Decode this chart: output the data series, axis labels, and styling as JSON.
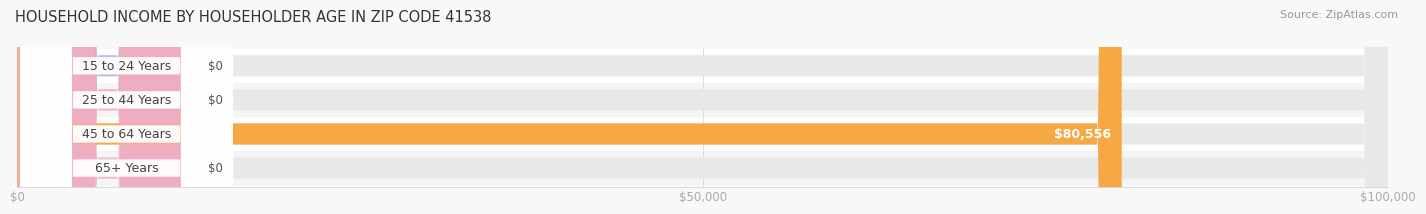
{
  "title": "HOUSEHOLD INCOME BY HOUSEHOLDER AGE IN ZIP CODE 41538",
  "source": "Source: ZipAtlas.com",
  "categories": [
    "15 to 24 Years",
    "25 to 44 Years",
    "45 to 64 Years",
    "65+ Years"
  ],
  "values": [
    0,
    0,
    80556,
    0
  ],
  "bar_colors": [
    "#b0b0e0",
    "#f2a0b8",
    "#f5a843",
    "#f2b0c0"
  ],
  "zero_bar_colors": [
    "#c8c8e8",
    "#f8c0d0",
    "#f5a843",
    "#f8c0d0"
  ],
  "xlim_max": 100000,
  "xticks": [
    0,
    50000,
    100000
  ],
  "xtick_labels": [
    "$0",
    "$50,000",
    "$100,000"
  ],
  "bar_height": 0.62,
  "fig_bg": "#f8f8f8",
  "row_colors": [
    "#ffffff",
    "#f5f5f5",
    "#ffffff",
    "#f5f5f5"
  ],
  "track_color": "#e8e8e8",
  "value_label_nonzero": "$80,556",
  "value_label_zero": "$0",
  "title_fontsize": 10.5,
  "source_fontsize": 8,
  "tick_fontsize": 8.5,
  "category_fontsize": 9,
  "label_bg_color": "#ffffff",
  "label_text_color": "#444444",
  "zero_value_color": "#555555"
}
